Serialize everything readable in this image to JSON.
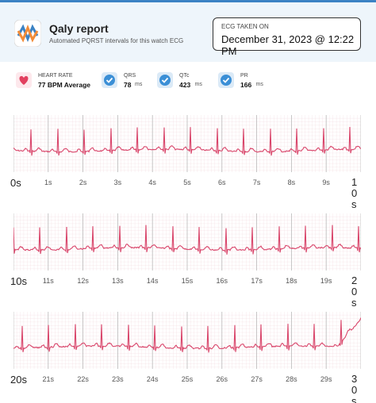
{
  "header": {
    "title": "Qaly report",
    "subtitle": "Automated PQRST intervals for this watch ECG",
    "taken_label": "ECG TAKEN ON",
    "taken_date": "December 31, 2023 @ 12:22 PM"
  },
  "metrics": [
    {
      "label": "HEART RATE",
      "value": "77 BPM Average"
    },
    {
      "label": "QRS",
      "value": "78",
      "unit": "ms"
    },
    {
      "label": "QTc",
      "value": "423",
      "unit": "ms"
    },
    {
      "label": "PR",
      "value": "166",
      "unit": "ms"
    }
  ],
  "strips": [
    {
      "labels": [
        "0s",
        "1s",
        "2s",
        "3s",
        "4s",
        "5s",
        "6s",
        "7s",
        "8s",
        "9s",
        "10s"
      ]
    },
    {
      "labels": [
        "10s",
        "11s",
        "12s",
        "13s",
        "14s",
        "15s",
        "16s",
        "17s",
        "18s",
        "19s",
        "20s"
      ]
    },
    {
      "labels": [
        "20s",
        "21s",
        "22s",
        "23s",
        "24s",
        "25s",
        "26s",
        "27s",
        "28s",
        "29s",
        "30s"
      ]
    }
  ]
}
